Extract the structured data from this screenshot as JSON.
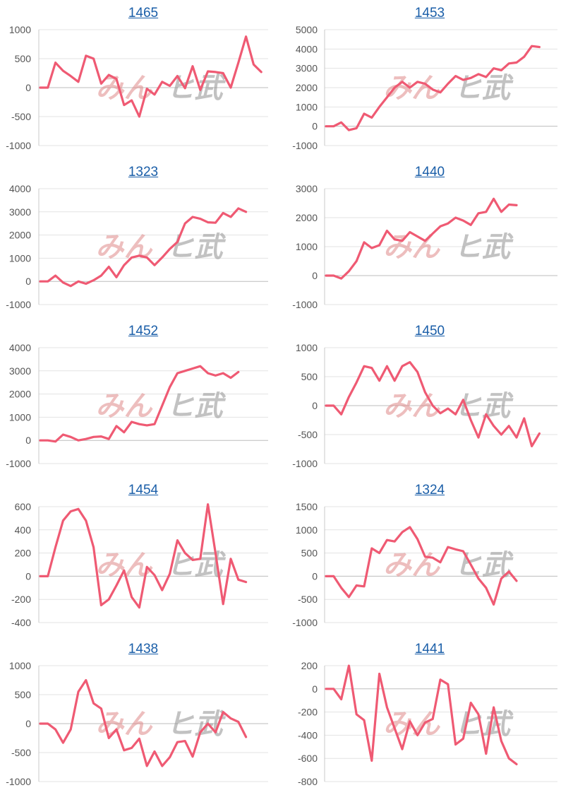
{
  "colors": {
    "line": "#ef5a73",
    "grid": "#e3e3e3",
    "zero": "#bdbdbd",
    "axis": "#c8c8c8",
    "title": "#1a5ea8"
  },
  "watermark": {
    "part1": "みん",
    "part2": "ヒ武"
  },
  "chart_data": [
    {
      "type": "line",
      "title": "1465",
      "ylim": [
        -1000,
        1000
      ],
      "yticks": [
        -1000,
        -500,
        0,
        500,
        1000
      ],
      "values": [
        0,
        0,
        430,
        290,
        200,
        100,
        550,
        500,
        70,
        220,
        150,
        -300,
        -220,
        -500,
        -20,
        -120,
        100,
        30,
        200,
        -10,
        370,
        -40,
        280,
        270,
        250,
        0,
        430,
        880,
        400,
        270
      ]
    },
    {
      "type": "line",
      "title": "1453",
      "ylim": [
        -1000,
        5000
      ],
      "yticks": [
        -1000,
        0,
        1000,
        2000,
        3000,
        4000,
        5000
      ],
      "values": [
        0,
        0,
        200,
        -200,
        -100,
        650,
        450,
        1000,
        1500,
        2000,
        2300,
        2000,
        2300,
        2200,
        1900,
        1750,
        2200,
        2600,
        2400,
        2500,
        2700,
        2550,
        3000,
        2900,
        3250,
        3300,
        3600,
        4150,
        4100
      ]
    },
    {
      "type": "line",
      "title": "1323",
      "ylim": [
        -1000,
        4000
      ],
      "yticks": [
        -1000,
        0,
        1000,
        2000,
        3000,
        4000
      ],
      "values": [
        0,
        0,
        250,
        -50,
        -200,
        0,
        -100,
        50,
        250,
        630,
        180,
        700,
        1030,
        1110,
        1030,
        700,
        1030,
        1400,
        1700,
        2500,
        2780,
        2700,
        2550,
        2530,
        2950,
        2780,
        3150,
        3000
      ]
    },
    {
      "type": "line",
      "title": "1440",
      "ylim": [
        -1000,
        3000
      ],
      "yticks": [
        -1000,
        0,
        1000,
        2000,
        3000
      ],
      "values": [
        0,
        0,
        -100,
        150,
        500,
        1150,
        950,
        1050,
        1550,
        1250,
        1200,
        1500,
        1350,
        1200,
        1450,
        1700,
        1800,
        2000,
        1900,
        1750,
        2150,
        2200,
        2650,
        2200,
        2450,
        2430
      ]
    },
    {
      "type": "line",
      "title": "1452",
      "ylim": [
        -1000,
        4000
      ],
      "yticks": [
        -1000,
        0,
        1000,
        2000,
        3000,
        4000
      ],
      "values": [
        0,
        0,
        -50,
        250,
        150,
        0,
        60,
        150,
        170,
        60,
        620,
        350,
        800,
        700,
        650,
        700,
        1500,
        2300,
        2900,
        3000,
        3100,
        3200,
        2900,
        2800,
        2900,
        2700,
        2950
      ]
    },
    {
      "type": "line",
      "title": "1450",
      "ylim": [
        -1000,
        1000
      ],
      "yticks": [
        -1000,
        -500,
        0,
        500,
        1000
      ],
      "values": [
        0,
        0,
        -150,
        150,
        400,
        680,
        650,
        430,
        680,
        430,
        680,
        750,
        580,
        230,
        0,
        -130,
        -50,
        -150,
        100,
        -250,
        -550,
        -150,
        -350,
        -500,
        -350,
        -550,
        -220,
        -700,
        -480
      ]
    },
    {
      "type": "line",
      "title": "1454",
      "ylim": [
        -400,
        600
      ],
      "yticks": [
        -400,
        -200,
        0,
        200,
        400,
        600
      ],
      "values": [
        0,
        0,
        250,
        480,
        560,
        580,
        480,
        250,
        -250,
        -200,
        -80,
        50,
        -180,
        -270,
        80,
        10,
        -120,
        20,
        310,
        200,
        140,
        150,
        620,
        200,
        -240,
        150,
        -30,
        -50
      ]
    },
    {
      "type": "line",
      "title": "1324",
      "ylim": [
        -1000,
        1500
      ],
      "yticks": [
        -1000,
        -500,
        0,
        500,
        1000,
        1500
      ],
      "values": [
        0,
        0,
        -250,
        -450,
        -200,
        -220,
        600,
        500,
        780,
        750,
        950,
        1060,
        800,
        420,
        400,
        300,
        630,
        580,
        540,
        250,
        -50,
        -250,
        -610,
        -50,
        100,
        -100
      ]
    },
    {
      "type": "line",
      "title": "1438",
      "ylim": [
        -1000,
        1000
      ],
      "yticks": [
        -1000,
        -500,
        0,
        500,
        1000
      ],
      "values": [
        0,
        0,
        -100,
        -330,
        -100,
        550,
        750,
        350,
        260,
        -250,
        -100,
        -460,
        -420,
        -260,
        -730,
        -480,
        -730,
        -580,
        -320,
        -300,
        -570,
        -150,
        0,
        -150,
        200,
        90,
        30,
        -230
      ]
    },
    {
      "type": "line",
      "title": "1441",
      "ylim": [
        -800,
        200
      ],
      "yticks": [
        -800,
        -600,
        -400,
        -200,
        0,
        200
      ],
      "values": [
        0,
        0,
        -90,
        200,
        -220,
        -270,
        -620,
        130,
        -160,
        -340,
        -520,
        -280,
        -400,
        -290,
        -260,
        80,
        40,
        -480,
        -430,
        -120,
        -220,
        -560,
        -160,
        -450,
        -600,
        -650
      ]
    }
  ]
}
